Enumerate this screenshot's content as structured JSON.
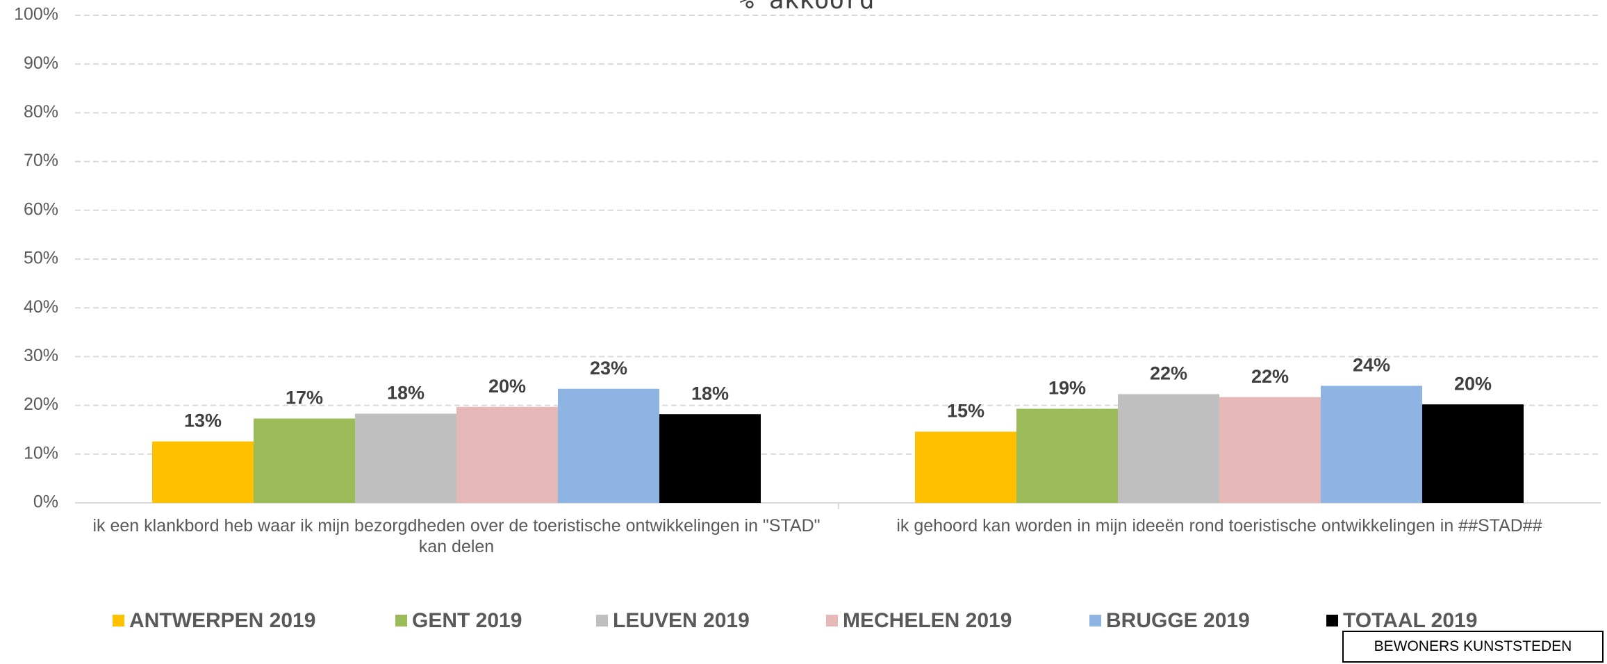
{
  "chart_data": {
    "type": "bar",
    "title": "% akkoord",
    "categories": [
      "ik een klankbord heb waar ik mijn bezorgdheden over de toeristische ontwikkelingen in \"STAD\" kan delen",
      "ik gehoord kan worden in mijn ideeën rond toeristische ontwikkelingen in ##STAD##"
    ],
    "series": [
      {
        "name": "ANTWERPEN 2019",
        "color": "#ffc000",
        "values": [
          12.6,
          14.6
        ],
        "value_labels": [
          "13%",
          "15%"
        ]
      },
      {
        "name": "GENT 2019",
        "color": "#9bbb59",
        "values": [
          17.3,
          19.3
        ],
        "value_labels": [
          "17%",
          "19%"
        ]
      },
      {
        "name": "LEUVEN 2019",
        "color": "#bfbfbf",
        "values": [
          18.3,
          22.3
        ],
        "value_labels": [
          "18%",
          "22%"
        ]
      },
      {
        "name": "MECHELEN 2019",
        "color": "#e6b9b8",
        "values": [
          19.7,
          21.7
        ],
        "value_labels": [
          "20%",
          "22%"
        ]
      },
      {
        "name": "BRUGGE 2019",
        "color": "#8db4e2",
        "values": [
          23.4,
          24.0
        ],
        "value_labels": [
          "23%",
          "24%"
        ]
      },
      {
        "name": "TOTAAL 2019",
        "color": "#000000",
        "values": [
          18.2,
          20.2
        ],
        "value_labels": [
          "18%",
          "20%"
        ]
      }
    ],
    "ylim": [
      0,
      100
    ],
    "yticks": [
      {
        "value": 0,
        "label": "0%"
      },
      {
        "value": 10,
        "label": "10%"
      },
      {
        "value": 20,
        "label": "20%"
      },
      {
        "value": 30,
        "label": "30%"
      },
      {
        "value": 40,
        "label": "40%"
      },
      {
        "value": 50,
        "label": "50%"
      },
      {
        "value": 60,
        "label": "60%"
      },
      {
        "value": 70,
        "label": "70%"
      },
      {
        "value": 80,
        "label": "80%"
      },
      {
        "value": 90,
        "label": "90%"
      },
      {
        "value": 100,
        "label": "100%"
      }
    ],
    "grid": true,
    "annotation": "BEWONERS KUNSTSTEDEN"
  }
}
